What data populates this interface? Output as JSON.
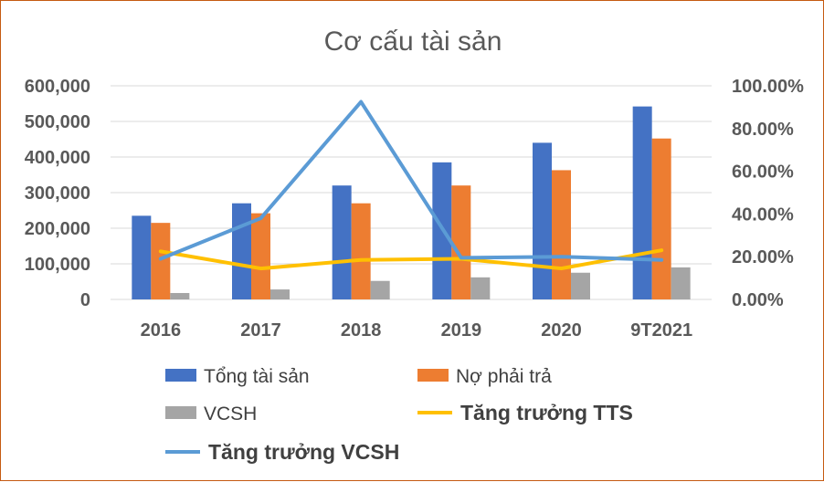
{
  "chart_data": {
    "type": "bar",
    "title": "Cơ cấu tài sản",
    "categories": [
      "2016",
      "2017",
      "2018",
      "2019",
      "2020",
      "9T2021"
    ],
    "y_left": {
      "ylim": [
        0,
        600000
      ],
      "ticks": [
        0,
        100000,
        200000,
        300000,
        400000,
        500000,
        600000
      ],
      "tick_labels": [
        "0",
        "100,000",
        "200,000",
        "300,000",
        "400,000",
        "500,000",
        "600,000"
      ]
    },
    "y_right": {
      "ylim": [
        0,
        1.0
      ],
      "ticks": [
        0,
        0.2,
        0.4,
        0.6,
        0.8,
        1.0
      ],
      "tick_labels": [
        "0.00%",
        "20.00%",
        "40.00%",
        "60.00%",
        "80.00%",
        "100.00%"
      ]
    },
    "series": [
      {
        "name": "Tổng tài sản",
        "kind": "bar",
        "axis": "left",
        "color": "#4472c4",
        "values": [
          235000,
          270000,
          320000,
          385000,
          440000,
          542000
        ]
      },
      {
        "name": "Nợ phải trả",
        "kind": "bar",
        "axis": "left",
        "color": "#ed7d31",
        "values": [
          215000,
          242000,
          270000,
          320000,
          363000,
          452000
        ]
      },
      {
        "name": "VCSH",
        "kind": "bar",
        "axis": "left",
        "color": "#a5a5a5",
        "values": [
          18000,
          28000,
          52000,
          62000,
          75000,
          90000
        ]
      },
      {
        "name": "Tăng trưởng TTS",
        "kind": "line",
        "axis": "right",
        "color": "#ffc000",
        "values": [
          0.225,
          0.145,
          0.185,
          0.19,
          0.145,
          0.23
        ]
      },
      {
        "name": "Tăng trưởng VCSH",
        "kind": "line",
        "axis": "right",
        "color": "#5b9bd5",
        "values": [
          0.19,
          0.38,
          0.925,
          0.195,
          0.2,
          0.185
        ]
      }
    ],
    "grid": true,
    "legend_position": "bottom"
  }
}
